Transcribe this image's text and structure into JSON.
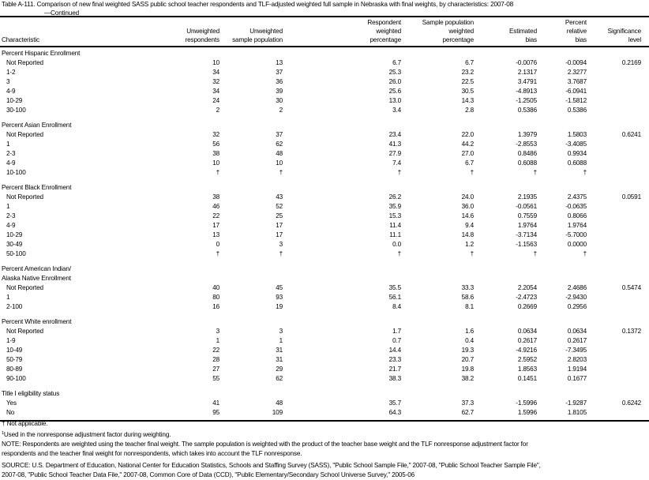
{
  "title": "Table A-111. Comparison of new final weighted SASS public school teacher respondents and TLF-adjusted weighted full sample in Nebraska with final weights, by characteristics: 2007-08",
  "continued": "—Continued",
  "columns": [
    [
      "Characteristic"
    ],
    [
      "Unweighted",
      "respondents"
    ],
    [
      "Unweighted",
      "sample population"
    ],
    [
      "Respondent",
      "weighted",
      "percentage"
    ],
    [
      "Sample population",
      "weighted",
      "percentage"
    ],
    [
      "Estimated",
      "bias"
    ],
    [
      "Percent",
      "relative",
      "bias"
    ],
    [
      "Significance",
      "level"
    ]
  ],
  "sections": [
    {
      "label": [
        "Percent Hispanic Enrollment"
      ],
      "rows": [
        [
          "Not Reported",
          "10",
          "13",
          "6.7",
          "6.7",
          "-0.0076",
          "-0.0094",
          "0.2169"
        ],
        [
          "1-2",
          "34",
          "37",
          "25.3",
          "23.2",
          "2.1317",
          "2.3277",
          ""
        ],
        [
          "3",
          "32",
          "36",
          "26.0",
          "22.5",
          "3.4791",
          "3.7687",
          ""
        ],
        [
          "4-9",
          "34",
          "39",
          "25.6",
          "30.5",
          "-4.8913",
          "-6.0941",
          ""
        ],
        [
          "10-29",
          "24",
          "30",
          "13.0",
          "14.3",
          "-1.2505",
          "-1.5812",
          ""
        ],
        [
          "30-100",
          "2",
          "2",
          "3.4",
          "2.8",
          "0.5386",
          "0.5386",
          ""
        ]
      ]
    },
    {
      "label": [
        "Percent Asian Enrollment"
      ],
      "rows": [
        [
          "Not Reported",
          "32",
          "37",
          "23.4",
          "22.0",
          "1.3979",
          "1.5803",
          "0.6241"
        ],
        [
          "1",
          "56",
          "62",
          "41.3",
          "44.2",
          "-2.8553",
          "-3.4085",
          ""
        ],
        [
          "2-3",
          "38",
          "48",
          "27.9",
          "27.0",
          "0.8486",
          "0.9934",
          ""
        ],
        [
          "4-9",
          "10",
          "10",
          "7.4",
          "6.7",
          "0.6088",
          "0.6088",
          ""
        ],
        [
          "10-100",
          "†",
          "†",
          "†",
          "†",
          "†",
          "†",
          ""
        ]
      ]
    },
    {
      "label": [
        "Percent Black Enrollment"
      ],
      "rows": [
        [
          "Not Reported",
          "38",
          "43",
          "26.2",
          "24.0",
          "2.1935",
          "2.4375",
          "0.0591"
        ],
        [
          "1",
          "46",
          "52",
          "35.9",
          "36.0",
          "-0.0561",
          "-0.0635",
          ""
        ],
        [
          "2-3",
          "22",
          "25",
          "15.3",
          "14.6",
          "0.7559",
          "0.8066",
          ""
        ],
        [
          "4-9",
          "17",
          "17",
          "11.4",
          "9.4",
          "1.9764",
          "1.9764",
          ""
        ],
        [
          "10-29",
          "13",
          "17",
          "11.1",
          "14.8",
          "-3.7134",
          "-5.7000",
          ""
        ],
        [
          "30-49",
          "0",
          "3",
          "0.0",
          "1.2",
          "-1.1563",
          "0.0000",
          ""
        ],
        [
          "50-100",
          "†",
          "†",
          "†",
          "†",
          "†",
          "†",
          ""
        ]
      ]
    },
    {
      "label": [
        "Percent American Indian/",
        "Alaska Native Enrollment"
      ],
      "rows": [
        [
          "Not Reported",
          "40",
          "45",
          "35.5",
          "33.3",
          "2.2054",
          "2.4686",
          "0.5474"
        ],
        [
          "1",
          "80",
          "93",
          "56.1",
          "58.6",
          "-2.4723",
          "-2.9430",
          ""
        ],
        [
          "2-100",
          "16",
          "19",
          "8.4",
          "8.1",
          "0.2669",
          "0.2956",
          ""
        ]
      ]
    },
    {
      "label": [
        "Percent White enrollment"
      ],
      "rows": [
        [
          "Not Reported",
          "3",
          "3",
          "1.7",
          "1.6",
          "0.0634",
          "0.0634",
          "0.1372"
        ],
        [
          "1-9",
          "1",
          "1",
          "0.7",
          "0.4",
          "0.2617",
          "0.2617",
          ""
        ],
        [
          "10-49",
          "22",
          "31",
          "14.4",
          "19.3",
          "-4.9216",
          "-7.3495",
          ""
        ],
        [
          "50-79",
          "28",
          "31",
          "23.3",
          "20.7",
          "2.5952",
          "2.8203",
          ""
        ],
        [
          "80-89",
          "27",
          "29",
          "21.7",
          "19.8",
          "1.8563",
          "1.9194",
          ""
        ],
        [
          "90-100",
          "55",
          "62",
          "38.3",
          "38.2",
          "0.1451",
          "0.1677",
          ""
        ]
      ]
    },
    {
      "label": [
        "Title I eligibility status"
      ],
      "rows": [
        [
          "Yes",
          "41",
          "48",
          "35.7",
          "37.3",
          "-1.5996",
          "-1.9287",
          "0.6242"
        ],
        [
          "No",
          "95",
          "109",
          "64.3",
          "62.7",
          "1.5996",
          "1.8105",
          ""
        ]
      ]
    }
  ],
  "footnotes": {
    "na": "† Not applicable.",
    "fn1_mark": "1",
    "fn1": "Used in the nonresponse adjustment factor during weighting.",
    "note1": "NOTE: Respondents are weighted using the teacher final weight. The sample population is weighted with the product of the teacher base weight and the TLF nonresponse adjustment factor for",
    "note2": "respondents and the teacher final weight for nonrespondents, which takes into account the TLF nonresponse.",
    "source1": "SOURCE: U.S. Department of Education, National Center for Education Statistics, Schools and Staffing Survey (SASS), \"Public School Sample File,\" 2007-08, \"Public School Teacher Sample File\",",
    "source2": "2007-08, \"Public School Teacher Data File,\" 2007-08, Common Core of Data (CCD), \"Public Elementary/Secondary School Universe Survey,\" 2005-06"
  }
}
